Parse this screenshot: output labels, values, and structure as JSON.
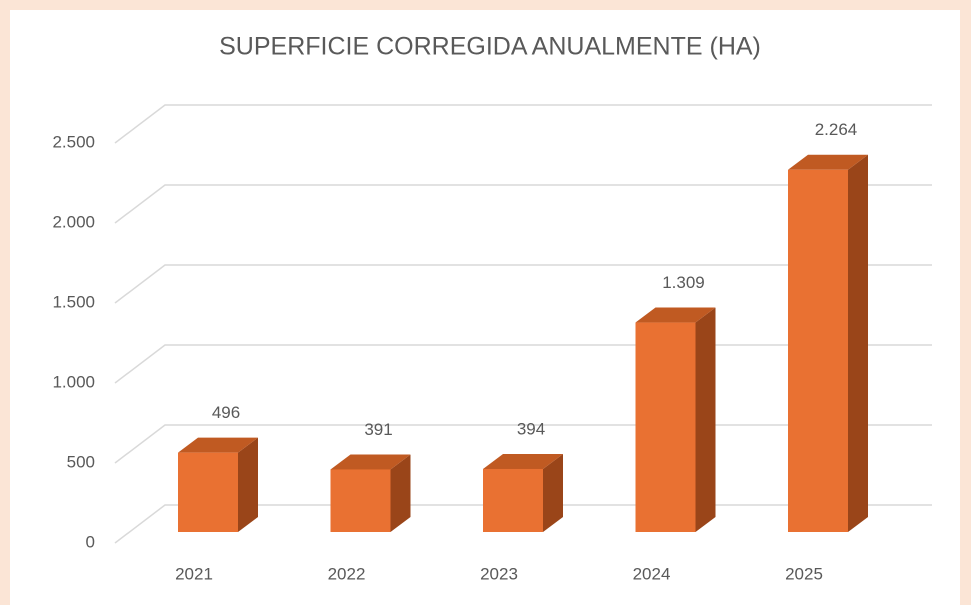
{
  "chart_data": {
    "type": "bar3d",
    "title": "SUPERFICIE CORREGIDA ANUALMENTE (HA)",
    "categories": [
      "2021",
      "2022",
      "2023",
      "2024",
      "2025"
    ],
    "values": [
      496,
      391,
      394,
      1309,
      2264
    ],
    "value_labels": [
      "496",
      "391",
      "394",
      "1.309",
      "2.264"
    ],
    "color": "#e97132",
    "ylim": [
      0,
      2500
    ],
    "yticks": [
      0,
      500,
      {
        "value": 1000,
        "label": "1.000"
      },
      {
        "value": 1500,
        "label": "1.500"
      },
      {
        "value": 2000,
        "label": "2.000"
      },
      {
        "value": 2500,
        "label": "2.500"
      }
    ],
    "grid": true
  }
}
